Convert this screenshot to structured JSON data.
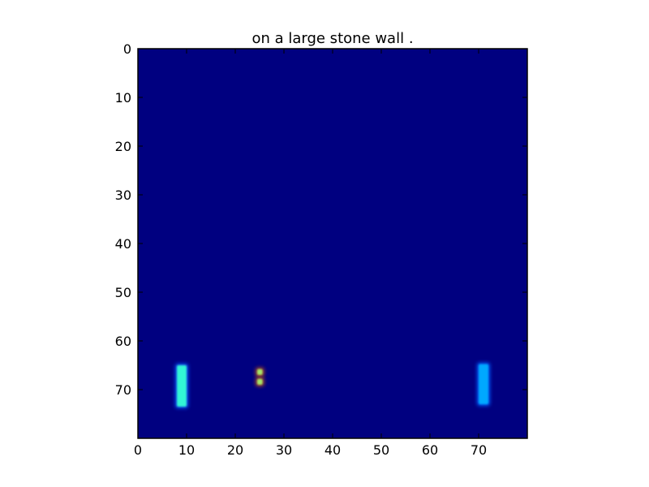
{
  "chart_data": {
    "type": "heatmap",
    "title": "on a large stone wall .",
    "xlabel": "",
    "ylabel": "",
    "xlim": [
      0,
      80
    ],
    "ylim": [
      80,
      0
    ],
    "y_axis_inverted": true,
    "grid": false,
    "colormap": "jet",
    "background_color": "#000080",
    "xticks": [
      0,
      10,
      20,
      30,
      40,
      50,
      60,
      70
    ],
    "yticks": [
      0,
      10,
      20,
      30,
      40,
      50,
      60,
      70
    ],
    "xtick_labels": [
      "0",
      "10",
      "20",
      "30",
      "40",
      "50",
      "60",
      "70"
    ],
    "ytick_labels": [
      "0",
      "10",
      "20",
      "30",
      "40",
      "50",
      "60",
      "70"
    ],
    "features": [
      {
        "name": "left-bar",
        "x0": 8.0,
        "x1": 10.0,
        "y0": 65.0,
        "y1": 73.5,
        "color": "#33f5d5",
        "glow": "#0a5cff"
      },
      {
        "name": "center-dot-top",
        "x0": 24.5,
        "x1": 25.6,
        "y0": 65.8,
        "y1": 67.0,
        "color": "#a6e66a",
        "glow": "#b34a1a"
      },
      {
        "name": "center-dot-bottom",
        "x0": 24.5,
        "x1": 25.6,
        "y0": 67.8,
        "y1": 69.0,
        "color": "#a6e66a",
        "glow": "#b34a1a"
      },
      {
        "name": "right-bar",
        "x0": 70.0,
        "x1": 72.0,
        "y0": 64.8,
        "y1": 73.0,
        "color": "#00a8ff",
        "glow": "#0060ff"
      }
    ]
  }
}
